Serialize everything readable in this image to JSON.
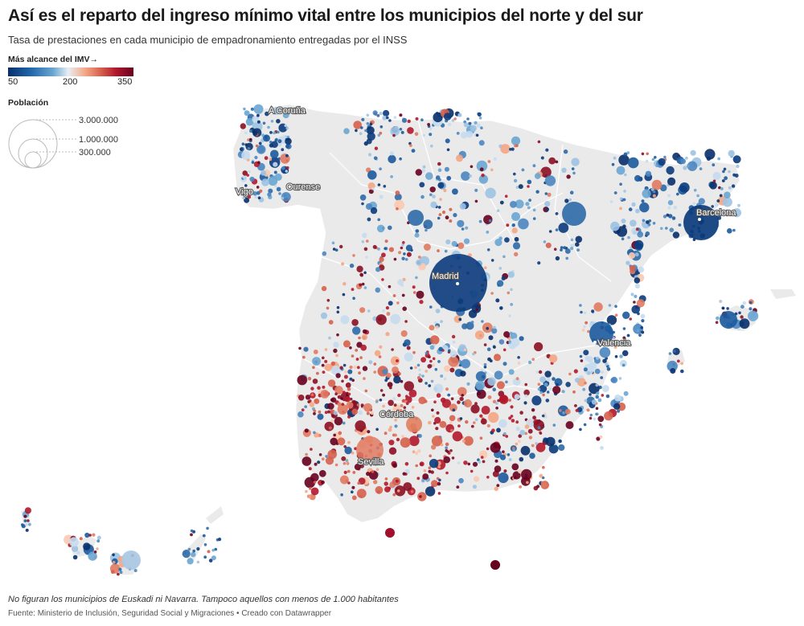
{
  "header": {
    "title": "Así es el reparto del ingreso mínimo vital entre los municipios del norte y del sur",
    "subtitle": "Tasa de prestaciones en cada municipio de empadronamiento entregadas por el INSS"
  },
  "legend": {
    "color_title": "Más alcance del IMV→",
    "color_ticks": [
      "50",
      "200",
      "350"
    ],
    "color_scale": [
      "#08306b",
      "#2166ac",
      "#6aa6d3",
      "#e8eef3",
      "#f4a582",
      "#d6604d",
      "#b2182b",
      "#67001f"
    ],
    "size_title": "Población",
    "size_ticks": [
      "3.000.000",
      "1.000.000",
      "300.000"
    ]
  },
  "cities": [
    {
      "name": "A Coruña"
    },
    {
      "name": "Vigo"
    },
    {
      "name": "Ourense"
    },
    {
      "name": "Madrid"
    },
    {
      "name": "Barcelona"
    },
    {
      "name": "Valencia"
    },
    {
      "name": "Córdoba"
    },
    {
      "name": "Sevilla"
    }
  ],
  "footer": {
    "note": "No figuran los municipios de Euskadi ni Navarra. Tampoco aquellos con menos de 1.000 habitantes",
    "source": "Fuente: Ministerio de Inclusión, Seguridad Social y Migraciones • Creado con Datawrapper"
  },
  "colors": {
    "land": "#eaeaea",
    "border": "#ffffff",
    "low": "#08306b",
    "mid": "#e8eef3",
    "high": "#67001f"
  }
}
